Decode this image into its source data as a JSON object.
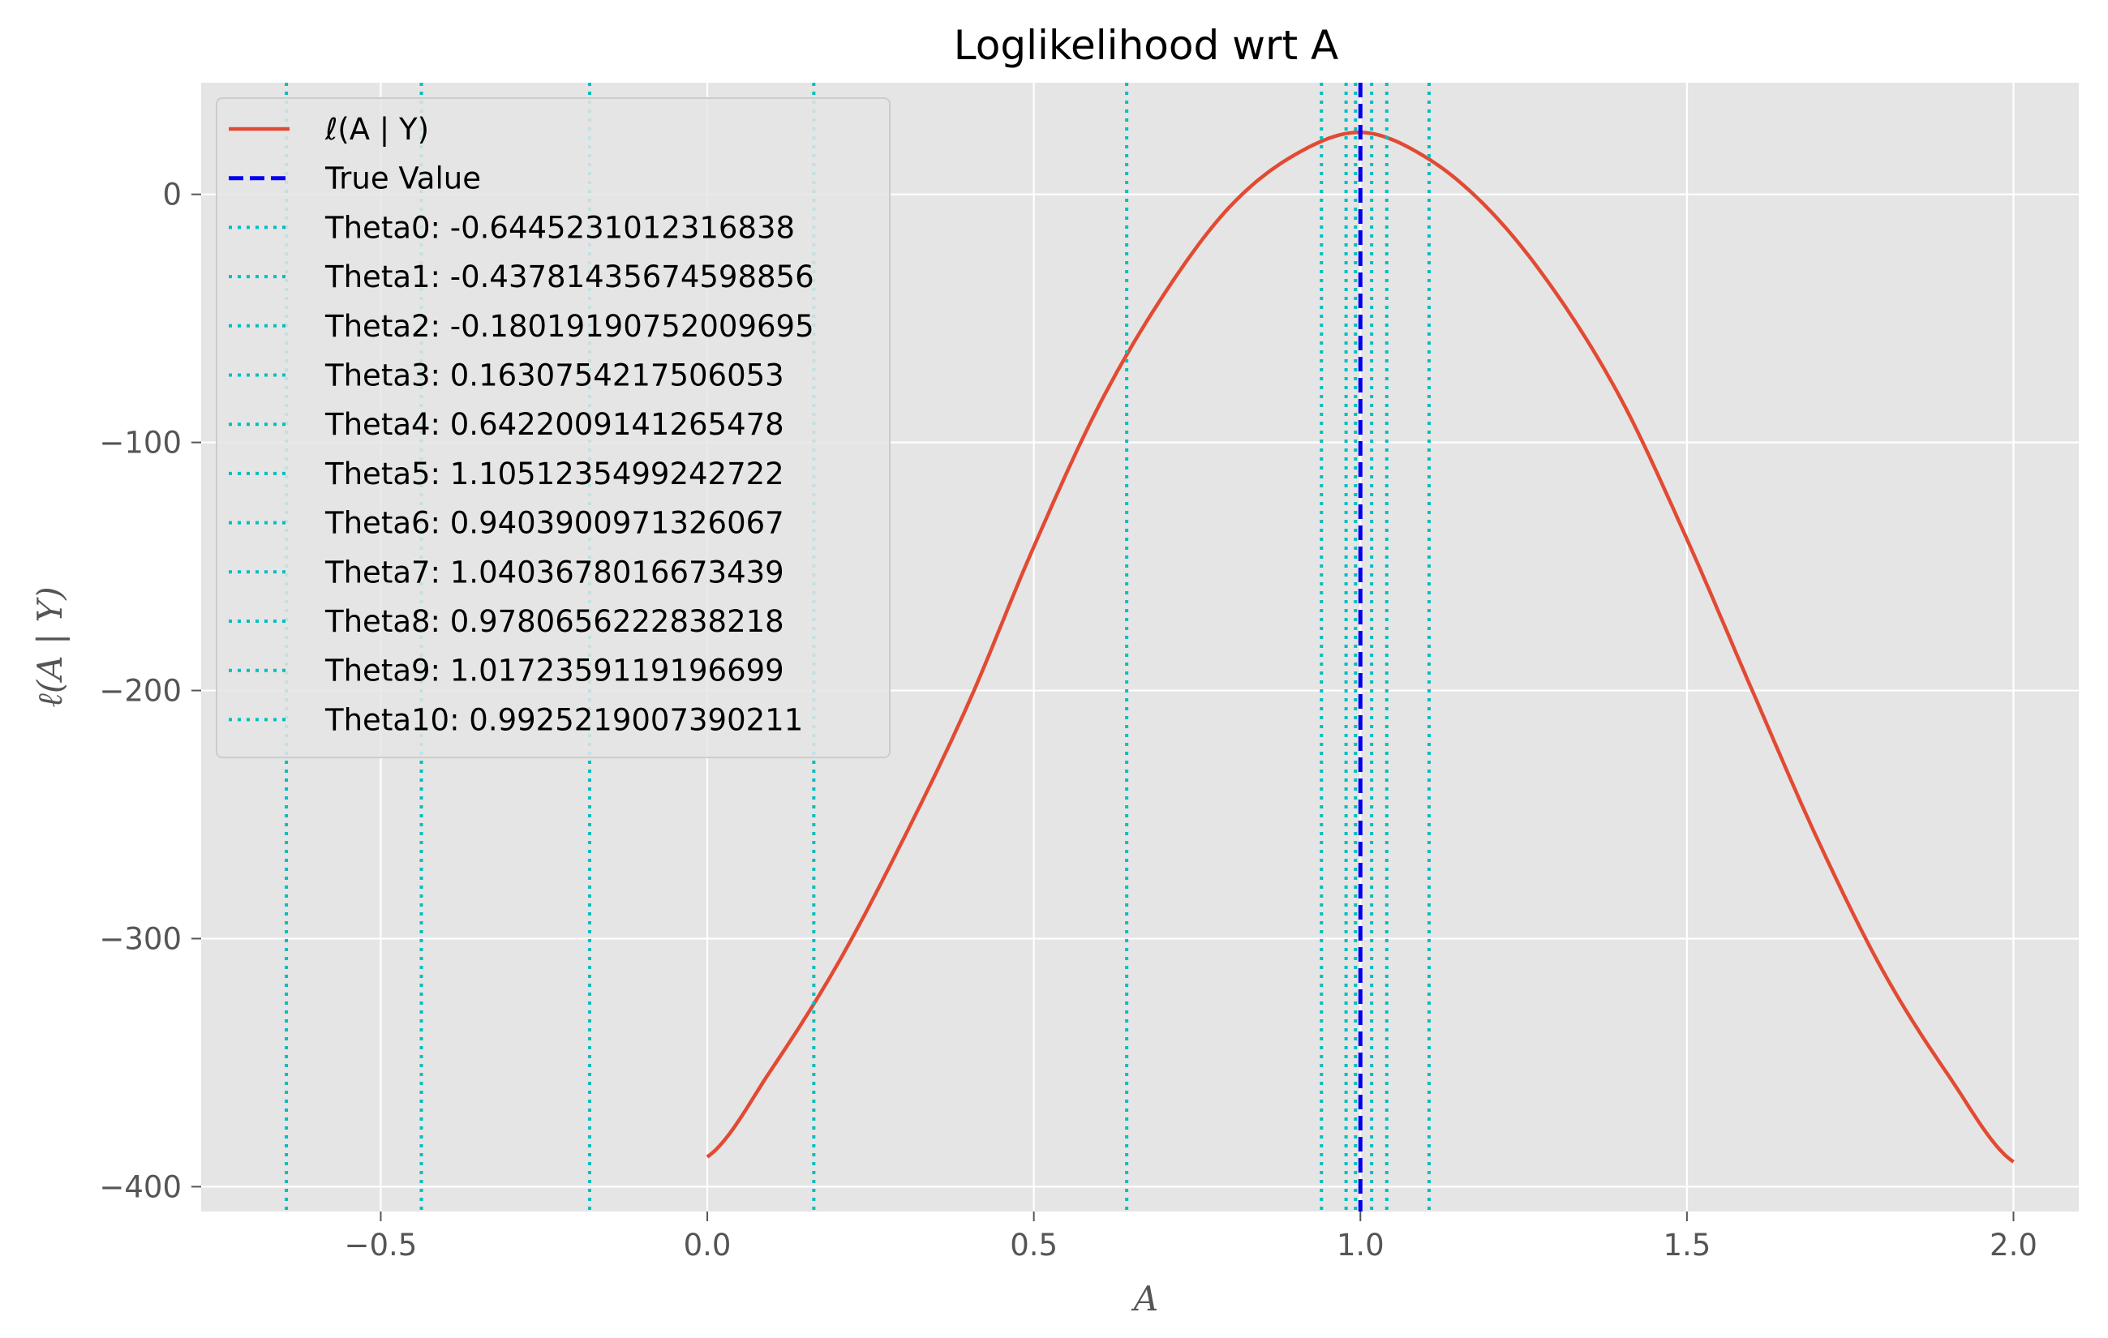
{
  "chart_data": {
    "type": "line",
    "title": "Loglikelihood wrt A",
    "xlabel": "A",
    "ylabel": "ℓ(A | Y)",
    "xlim": [
      -0.775,
      2.1
    ],
    "ylim": [
      -410,
      45
    ],
    "x_ticks": [
      -0.5,
      0.0,
      0.5,
      1.0,
      1.5,
      2.0
    ],
    "x_tick_labels": [
      "−0.5",
      "0.0",
      "0.5",
      "1.0",
      "1.5",
      "2.0"
    ],
    "y_ticks": [
      0,
      -100,
      -200,
      -300,
      -400
    ],
    "y_tick_labels": [
      "0",
      "−100",
      "−200",
      "−300",
      "−400"
    ],
    "grid": true,
    "legend_position": "upper-left",
    "series": [
      {
        "name": "ℓ(A | Y)",
        "style": "solid",
        "color": "#E24A33",
        "x": [
          0.0,
          0.1,
          0.2,
          0.3,
          0.4,
          0.5,
          0.6,
          0.7,
          0.8,
          0.9,
          1.0,
          1.1,
          1.2,
          1.3,
          1.4,
          1.5,
          1.6,
          1.7,
          1.8,
          1.9,
          2.0
        ],
        "y": [
          -388,
          -352,
          -310,
          -260,
          -205,
          -142,
          -85,
          -40,
          -5,
          16,
          25,
          15,
          -7,
          -40,
          -83,
          -139,
          -200,
          -260,
          -313,
          -355,
          -390
        ]
      }
    ],
    "vlines": [
      {
        "name": "True Value",
        "x": 1.0,
        "style": "dashed",
        "color": "#0000EE"
      },
      {
        "name": "Theta0: -0.6445231012316838",
        "x": -0.6445231012316838,
        "style": "dotted",
        "color": "#00BFBF"
      },
      {
        "name": "Theta1: -0.43781435674598856",
        "x": -0.43781435674598856,
        "style": "dotted",
        "color": "#00BFBF"
      },
      {
        "name": "Theta2: -0.18019190752009695",
        "x": -0.18019190752009695,
        "style": "dotted",
        "color": "#00BFBF"
      },
      {
        "name": "Theta3: 0.1630754217506053",
        "x": 0.1630754217506053,
        "style": "dotted",
        "color": "#00BFBF"
      },
      {
        "name": "Theta4: 0.6422009141265478",
        "x": 0.6422009141265478,
        "style": "dotted",
        "color": "#00BFBF"
      },
      {
        "name": "Theta5: 1.1051235499242722",
        "x": 1.1051235499242722,
        "style": "dotted",
        "color": "#00BFBF"
      },
      {
        "name": "Theta6: 0.9403900971326067",
        "x": 0.9403900971326067,
        "style": "dotted",
        "color": "#00BFBF"
      },
      {
        "name": "Theta7: 1.0403678016673439",
        "x": 1.0403678016673439,
        "style": "dotted",
        "color": "#00BFBF"
      },
      {
        "name": "Theta8: 0.9780656222838218",
        "x": 0.9780656222838218,
        "style": "dotted",
        "color": "#00BFBF"
      },
      {
        "name": "Theta9: 1.0172359119196699",
        "x": 1.0172359119196699,
        "style": "dotted",
        "color": "#00BFBF"
      },
      {
        "name": "Theta10: 0.9925219007390211",
        "x": 0.9925219007390211,
        "style": "dotted",
        "color": "#00BFBF"
      }
    ]
  },
  "colors": {
    "plot_background": "#E5E5E5",
    "grid": "#FFFFFF",
    "legend_background": "#E5E5E5",
    "legend_border": "#CCCCCC"
  }
}
